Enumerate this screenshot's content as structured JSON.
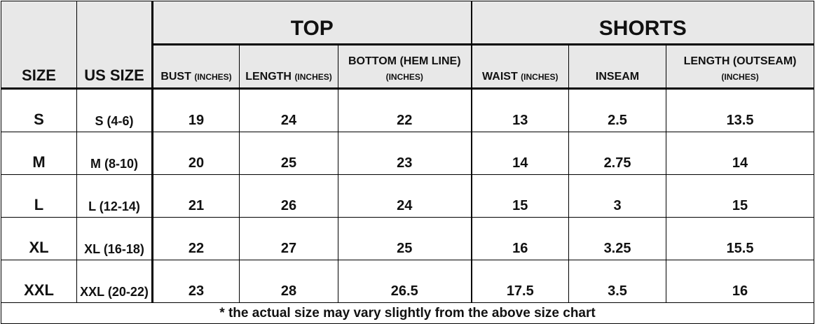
{
  "header": {
    "size": "SIZE",
    "us_size": "US SIZE",
    "top_group": "TOP",
    "shorts_group": "SHORTS",
    "columns": [
      {
        "main": "BUST",
        "unit": "(INCHES)"
      },
      {
        "main": "LENGTH",
        "unit": "(INCHES)"
      },
      {
        "main": "BOTTOM (HEM LINE)",
        "unit": "(INCHES)"
      },
      {
        "main": "WAIST",
        "unit": "(INCHES)"
      },
      {
        "main": "INSEAM",
        "unit": ""
      },
      {
        "main": "LENGTH (OUTSEAM)",
        "unit": "(INCHES)"
      }
    ]
  },
  "rows": [
    {
      "size": "S",
      "us": "S (4-6)",
      "bust": "19",
      "length": "24",
      "bottom": "22",
      "waist": "13",
      "inseam": "2.5",
      "outseam": "13.5"
    },
    {
      "size": "M",
      "us": "M (8-10)",
      "bust": "20",
      "length": "25",
      "bottom": "23",
      "waist": "14",
      "inseam": "2.75",
      "outseam": "14"
    },
    {
      "size": "L",
      "us": "L (12-14)",
      "bust": "21",
      "length": "26",
      "bottom": "24",
      "waist": "15",
      "inseam": "3",
      "outseam": "15"
    },
    {
      "size": "XL",
      "us": "XL (16-18)",
      "bust": "22",
      "length": "27",
      "bottom": "25",
      "waist": "16",
      "inseam": "3.25",
      "outseam": "15.5"
    },
    {
      "size": "XXL",
      "us": "XXL (20-22)",
      "bust": "23",
      "length": "28",
      "bottom": "26.5",
      "waist": "17.5",
      "inseam": "3.5",
      "outseam": "16"
    }
  ],
  "footnote": "* the actual size may vary slightly from the above size chart",
  "colors": {
    "header_bg": "#e8e8e8",
    "border": "#000000"
  }
}
